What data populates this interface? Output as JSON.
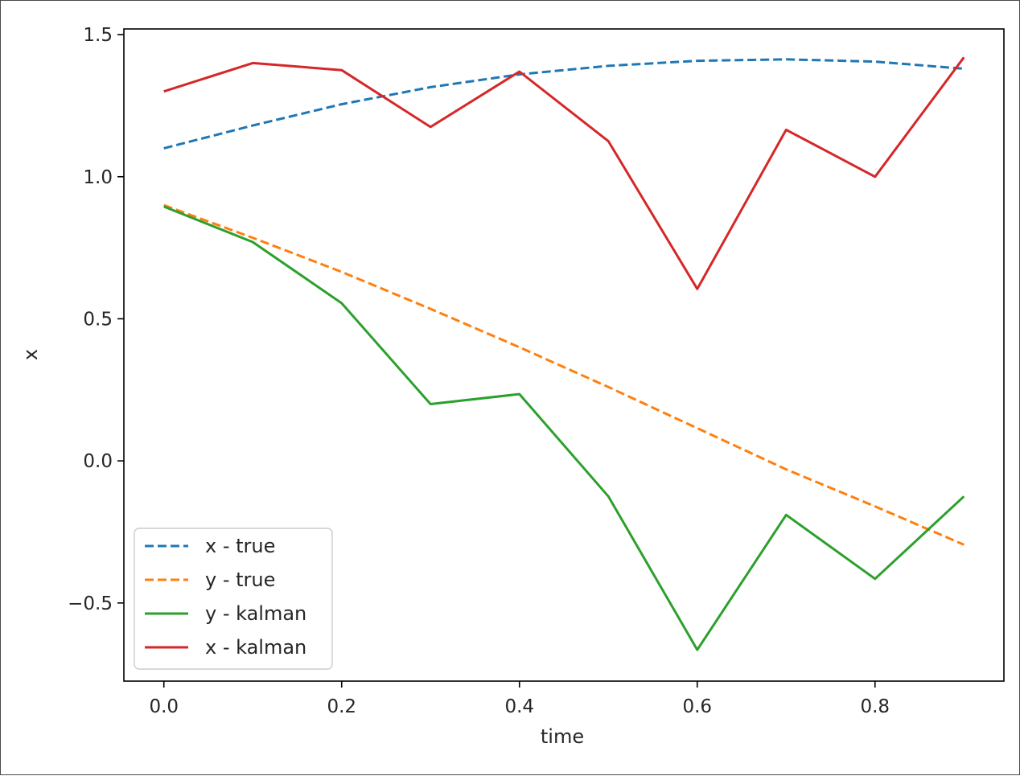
{
  "chart_data": {
    "type": "line",
    "title": "",
    "xlabel": "time",
    "ylabel": "x",
    "xlim": [
      -0.045,
      0.945
    ],
    "ylim": [
      -0.775,
      1.52
    ],
    "xticks": [
      0.0,
      0.2,
      0.4,
      0.6,
      0.8
    ],
    "xtick_labels": [
      "0.0",
      "0.2",
      "0.4",
      "0.6",
      "0.8"
    ],
    "yticks": [
      -0.5,
      0.0,
      0.5,
      1.0,
      1.5
    ],
    "ytick_labels": [
      "−0.5",
      "0.0",
      "0.5",
      "1.0",
      "1.5"
    ],
    "grid": false,
    "legend_position": "lower-left",
    "series": [
      {
        "name": "x - true",
        "color": "#1f77b4",
        "style": "dashed",
        "x": [
          0.0,
          0.1,
          0.2,
          0.3,
          0.4,
          0.5,
          0.6,
          0.7,
          0.8,
          0.9
        ],
        "values": [
          1.1,
          1.18,
          1.255,
          1.315,
          1.36,
          1.39,
          1.408,
          1.413,
          1.405,
          1.38
        ]
      },
      {
        "name": "y - true",
        "color": "#ff7f0e",
        "style": "dashed",
        "x": [
          0.0,
          0.1,
          0.2,
          0.3,
          0.4,
          0.5,
          0.6,
          0.7,
          0.8,
          0.9
        ],
        "values": [
          0.9,
          0.785,
          0.665,
          0.535,
          0.4,
          0.26,
          0.115,
          -0.03,
          -0.16,
          -0.295
        ]
      },
      {
        "name": "y - kalman",
        "color": "#2ca02c",
        "style": "solid",
        "x": [
          0.0,
          0.1,
          0.2,
          0.3,
          0.4,
          0.5,
          0.6,
          0.7,
          0.8,
          0.9
        ],
        "values": [
          0.895,
          0.77,
          0.555,
          0.2,
          0.235,
          -0.125,
          -0.665,
          -0.19,
          -0.415,
          -0.125
        ]
      },
      {
        "name": "x - kalman",
        "color": "#d62728",
        "style": "solid",
        "x": [
          0.0,
          0.1,
          0.2,
          0.3,
          0.4,
          0.5,
          0.6,
          0.7,
          0.8,
          0.9
        ],
        "values": [
          1.3,
          1.4,
          1.375,
          1.175,
          1.37,
          1.125,
          0.605,
          1.165,
          1.0,
          1.42
        ]
      }
    ]
  }
}
